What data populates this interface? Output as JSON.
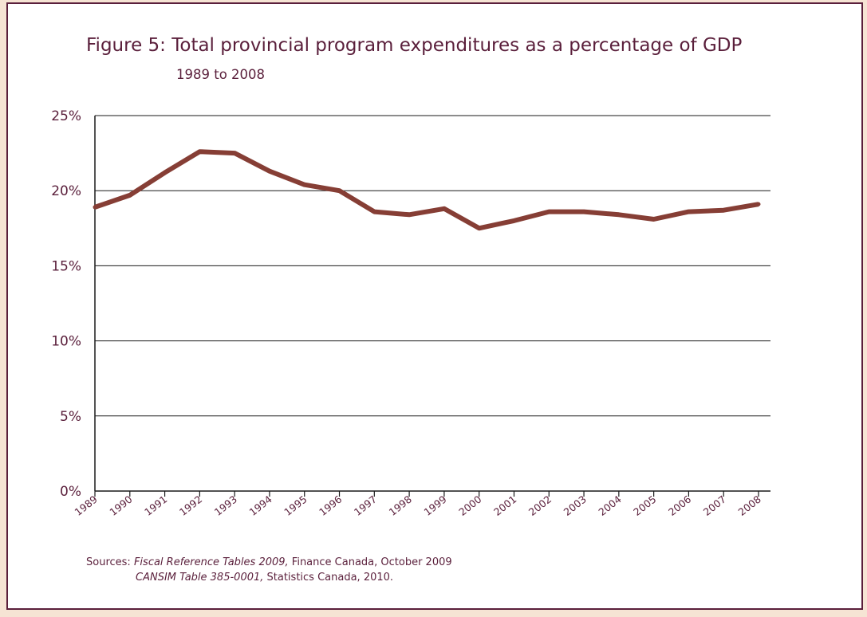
{
  "colors": {
    "background": "#f6e4d4",
    "frame": "#5a1f3b",
    "text": "#5a1f3b",
    "series": "#863e35",
    "grid": "#1a1a1a"
  },
  "chart_data": {
    "type": "line",
    "title": "Figure 5: Total provincial program expenditures as a percentage of GDP",
    "subtitle": "1989 to 2008",
    "xlabel": "",
    "ylabel": "",
    "categories": [
      "1989",
      "1990",
      "1991",
      "1992",
      "1993",
      "1994",
      "1995",
      "1996",
      "1997",
      "1998",
      "1999",
      "2000",
      "2001",
      "2002",
      "2003",
      "2004",
      "2005",
      "2006",
      "2007",
      "2008"
    ],
    "series": [
      {
        "values": [
          18.9,
          19.7,
          21.2,
          22.6,
          22.5,
          21.3,
          20.4,
          20.0,
          18.6,
          18.4,
          18.8,
          17.5,
          18.0,
          18.6,
          18.6,
          18.4,
          18.1,
          18.6,
          18.7,
          19.1
        ]
      }
    ],
    "ylim": [
      0,
      25
    ],
    "yticks": [
      0,
      5,
      10,
      15,
      20,
      25
    ],
    "ytick_labels": [
      "0%",
      "5%",
      "10%",
      "15%",
      "20%",
      "25%"
    ],
    "grid": "horizontal",
    "legend": "none"
  },
  "sources": {
    "prefix": "Sources:",
    "line1_italic": "Fiscal Reference Tables 2009,",
    "line1_rest": " Finance Canada, October 2009",
    "line2_italic": "CANSIM Table 385-0001,",
    "line2_rest": " Statistics Canada, 2010."
  }
}
